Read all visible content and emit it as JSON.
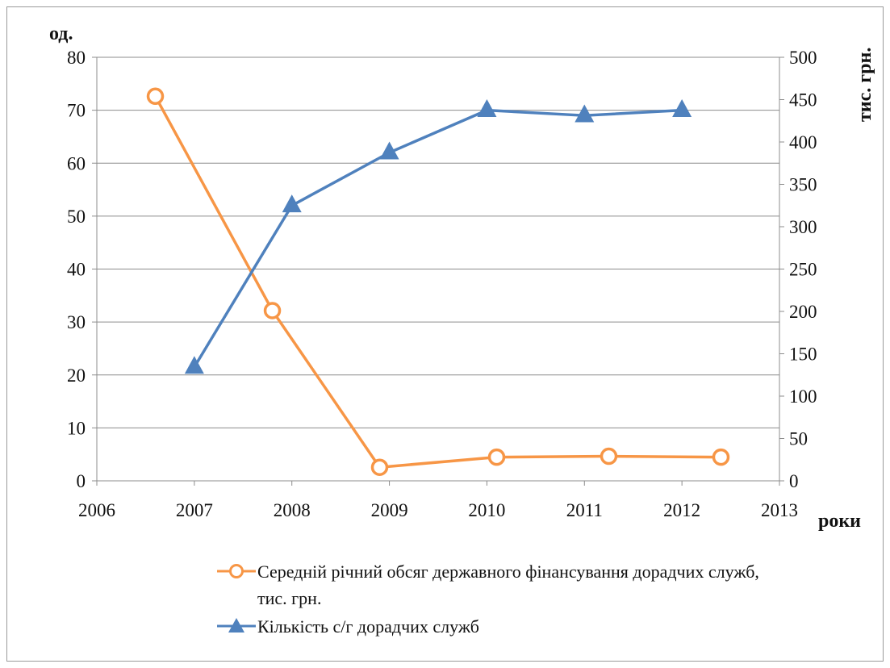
{
  "chart_data": {
    "type": "line",
    "x_axis": {
      "label": "роки",
      "range": [
        2006,
        2013
      ],
      "ticks": [
        "2006",
        "2007",
        "2008",
        "2009",
        "2010",
        "2011",
        "2012",
        "2013"
      ]
    },
    "y_left": {
      "label": "од.",
      "range": [
        0,
        80
      ],
      "ticks": [
        "0",
        "10",
        "20",
        "30",
        "40",
        "50",
        "60",
        "70",
        "80"
      ]
    },
    "y_right": {
      "label": "тис. грн.",
      "range": [
        0,
        500
      ],
      "ticks": [
        "0",
        "50",
        "100",
        "150",
        "200",
        "250",
        "300",
        "350",
        "400",
        "450",
        "500"
      ]
    },
    "grid": "horizontal",
    "legend_position": "bottom",
    "series": [
      {
        "name": "Середній річний обсяг державного фінансування дорадчих служб, тис. грн.",
        "axis": "right",
        "color": "#F79646",
        "marker": "circle-open",
        "x": [
          2006.6,
          2007.8,
          2008.9,
          2010.1,
          2011.25,
          2012.4
        ],
        "y": [
          454,
          201,
          16,
          28,
          29,
          28
        ]
      },
      {
        "name": "Кількість с/г дорадчих служб",
        "axis": "left",
        "color": "#4F81BD",
        "marker": "triangle",
        "x": [
          2007,
          2008,
          2009,
          2010,
          2011,
          2012
        ],
        "y": [
          21.5,
          52,
          62,
          70,
          69,
          70
        ]
      }
    ]
  }
}
